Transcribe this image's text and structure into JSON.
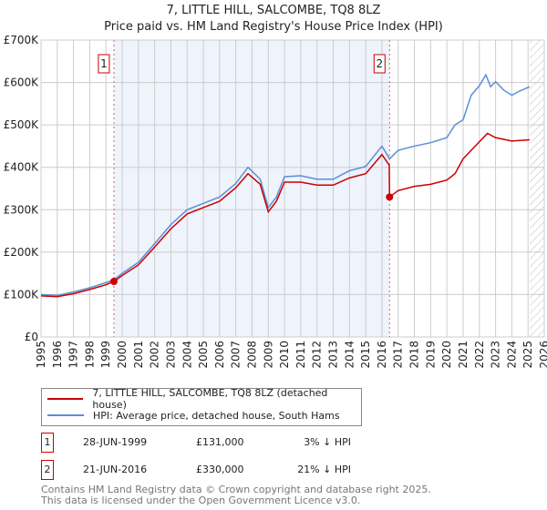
{
  "chart_data": {
    "type": "line",
    "title": "7, LITTLE HILL, SALCOMBE, TQ8 8LZ",
    "subtitle": "Price paid vs. HM Land Registry's House Price Index (HPI)",
    "xlim": [
      1995,
      2026
    ],
    "ylim": [
      0,
      700000
    ],
    "yticks": [
      {
        "v": 0,
        "label": "£0"
      },
      {
        "v": 100000,
        "label": "£100K"
      },
      {
        "v": 200000,
        "label": "£200K"
      },
      {
        "v": 300000,
        "label": "£300K"
      },
      {
        "v": 400000,
        "label": "£400K"
      },
      {
        "v": 500000,
        "label": "£500K"
      },
      {
        "v": 600000,
        "label": "£600K"
      },
      {
        "v": 700000,
        "label": "£700K"
      }
    ],
    "xticks": [
      "1995",
      "1996",
      "1997",
      "1998",
      "1999",
      "2000",
      "2001",
      "2002",
      "2003",
      "2004",
      "2005",
      "2006",
      "2007",
      "2008",
      "2009",
      "2010",
      "2011",
      "2012",
      "2013",
      "2014",
      "2015",
      "2016",
      "2017",
      "2018",
      "2019",
      "2020",
      "2021",
      "2022",
      "2023",
      "2024",
      "2025",
      "2026"
    ],
    "series": [
      {
        "name": "7, LITTLE HILL, SALCOMBE, TQ8 8LZ (detached house)",
        "color": "#cc0000",
        "x": [
          1995,
          1996,
          1997,
          1998,
          1999,
          1999.49,
          2000,
          2001,
          2002,
          2003,
          2004,
          2005,
          2006,
          2007,
          2007.75,
          2008.5,
          2009,
          2009.5,
          2010,
          2011,
          2012,
          2013,
          2014,
          2015,
          2016,
          2016.45,
          2016.47,
          2017,
          2018,
          2019,
          2020,
          2020.5,
          2021,
          2022,
          2022.5,
          2023,
          2024,
          2025.1
        ],
        "y": [
          97000,
          95000,
          102000,
          112000,
          123000,
          131000,
          145000,
          170000,
          212000,
          255000,
          290000,
          305000,
          320000,
          352000,
          385000,
          360000,
          295000,
          320000,
          365000,
          365000,
          358000,
          358000,
          375000,
          385000,
          430000,
          405000,
          330000,
          345000,
          355000,
          360000,
          370000,
          385000,
          420000,
          460000,
          480000,
          470000,
          462000,
          465000
        ]
      },
      {
        "name": "HPI: Average price, detached house, South Hams",
        "color": "#5b8fd6",
        "x": [
          1995,
          1996,
          1997,
          1998,
          1999,
          1999.49,
          2000,
          2001,
          2002,
          2003,
          2004,
          2005,
          2006,
          2007,
          2007.75,
          2008.5,
          2009,
          2009.5,
          2010,
          2011,
          2012,
          2013,
          2014,
          2015,
          2016,
          2016.47,
          2017,
          2018,
          2019,
          2020,
          2020.5,
          2021,
          2021.5,
          2022,
          2022.4,
          2022.7,
          2023,
          2023.5,
          2024,
          2024.5,
          2025.1
        ],
        "y": [
          100000,
          98000,
          106000,
          116000,
          128000,
          135000,
          150000,
          176000,
          220000,
          265000,
          300000,
          315000,
          330000,
          362000,
          400000,
          372000,
          305000,
          330000,
          378000,
          380000,
          372000,
          372000,
          392000,
          402000,
          450000,
          420000,
          440000,
          450000,
          458000,
          470000,
          500000,
          512000,
          570000,
          592000,
          618000,
          590000,
          602000,
          582000,
          570000,
          580000,
          590000
        ]
      }
    ],
    "sales": [
      {
        "n": "1",
        "x": 1999.49,
        "y": 131000
      },
      {
        "n": "2",
        "x": 2016.47,
        "y": 330000
      }
    ],
    "forecast_from": 2025.1
  },
  "table": [
    {
      "n": "1",
      "date": "28-JUN-1999",
      "price": "£131,000",
      "hpi": "3% ↓ HPI"
    },
    {
      "n": "2",
      "date": "21-JUN-2016",
      "price": "£330,000",
      "hpi": "21% ↓ HPI"
    }
  ],
  "footer": [
    "Contains HM Land Registry data © Crown copyright and database right 2025.",
    "This data is licensed under the Open Government Licence v3.0."
  ]
}
